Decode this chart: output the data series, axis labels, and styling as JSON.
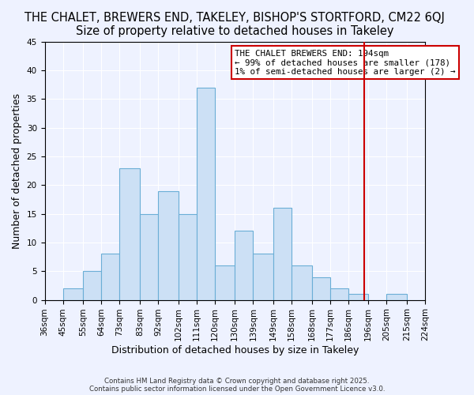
{
  "title": "THE CHALET, BREWERS END, TAKELEY, BISHOP'S STORTFORD, CM22 6QJ",
  "subtitle": "Size of property relative to detached houses in Takeley",
  "xlabel": "Distribution of detached houses by size in Takeley",
  "ylabel": "Number of detached properties",
  "bar_values": [
    0,
    2,
    5,
    8,
    23,
    15,
    19,
    15,
    37,
    6,
    12,
    8,
    16,
    6,
    4,
    2,
    1,
    0,
    1,
    0
  ],
  "bin_edges": [
    36,
    45,
    55,
    64,
    73,
    83,
    92,
    102,
    111,
    120,
    130,
    139,
    149,
    158,
    168,
    177,
    186,
    196,
    205,
    215,
    224
  ],
  "bin_labels": [
    "36sqm",
    "45sqm",
    "55sqm",
    "64sqm",
    "73sqm",
    "83sqm",
    "92sqm",
    "102sqm",
    "111sqm",
    "120sqm",
    "130sqm",
    "139sqm",
    "149sqm",
    "158sqm",
    "168sqm",
    "177sqm",
    "186sqm",
    "196sqm",
    "205sqm",
    "215sqm",
    "224sqm"
  ],
  "bar_fill": "#cce0f5",
  "bar_edge": "#6baed6",
  "vline_x": 194,
  "vline_color": "#cc0000",
  "legend_title": "THE CHALET BREWERS END: 194sqm",
  "legend_line1": "← 99% of detached houses are smaller (178)",
  "legend_line2": "1% of semi-detached houses are larger (2) →",
  "legend_box_color": "#cc0000",
  "ylim": [
    0,
    45
  ],
  "footer1": "Contains HM Land Registry data © Crown copyright and database right 2025.",
  "footer2": "Contains public sector information licensed under the Open Government Licence v3.0.",
  "title_fontsize": 10.5,
  "subtitle_fontsize": 9.5,
  "axis_label_fontsize": 9,
  "tick_fontsize": 7.5,
  "background_color": "#eef2ff",
  "plot_background": "#eef2ff"
}
